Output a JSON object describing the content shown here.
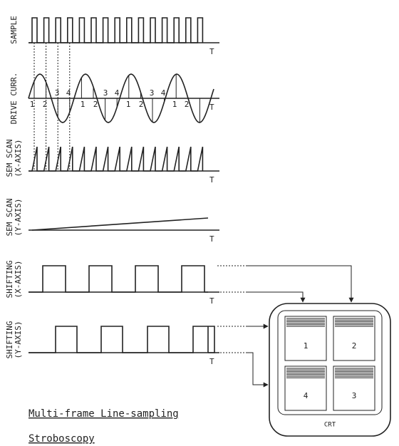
{
  "panels": [
    {
      "label": [
        "SAMPLE"
      ],
      "axis": "T"
    },
    {
      "label": [
        "DRIVE CURR."
      ],
      "axis": "T",
      "phase_labels": [
        "1",
        "2",
        "3",
        "4",
        "1",
        "2",
        "3",
        "4",
        "1",
        "2",
        "3",
        "4",
        "1",
        "2"
      ]
    },
    {
      "label": [
        "SEM SCAN",
        "(X-AXIS)"
      ],
      "axis": "T"
    },
    {
      "label": [
        "SEM SCAN",
        "(Y-AXIS)"
      ],
      "axis": "T"
    },
    {
      "label": [
        "SHIFTING",
        "(X-AXIS)"
      ],
      "axis": "T"
    },
    {
      "label": [
        "SHIFTING",
        "(Y-AXIS)"
      ],
      "axis": "T"
    }
  ],
  "crt": {
    "frames": [
      "1",
      "2",
      "4",
      "3"
    ],
    "label": "CRT"
  },
  "caption": [
    "Multi-frame Line-sampling",
    "Stroboscopy"
  ]
}
